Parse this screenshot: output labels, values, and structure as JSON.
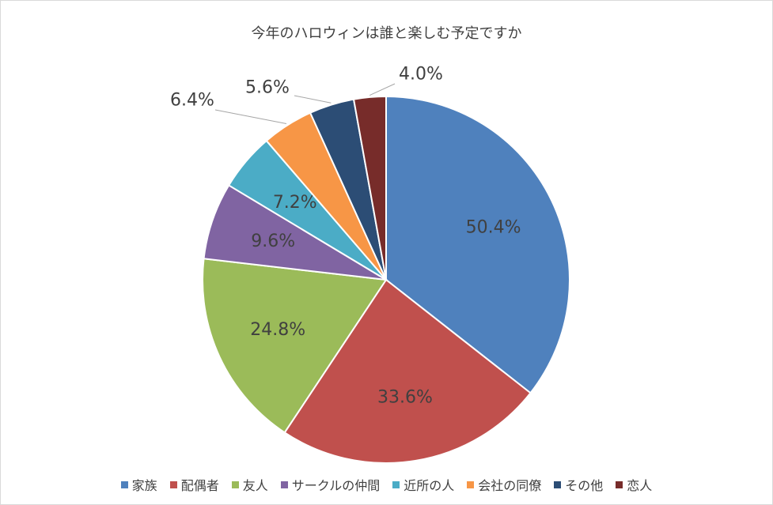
{
  "chart_data": {
    "type": "pie",
    "title": "今年のハロウィンは誰と楽しむ予定ですか",
    "categories": [
      "家族",
      "配偶者",
      "友人",
      "サークルの仲間",
      "近所の人",
      "会社の同僚",
      "その他",
      "恋人"
    ],
    "values": [
      50.4,
      33.6,
      24.8,
      9.6,
      7.2,
      6.4,
      5.6,
      4.0
    ],
    "data_labels": [
      "50.4%",
      "33.6%",
      "24.8%",
      "9.6%",
      "7.2%",
      "6.4%",
      "5.6%",
      "4.0%"
    ],
    "colors": [
      "#4f81bd",
      "#c0504d",
      "#9bbb59",
      "#8064a2",
      "#4bacc6",
      "#f79646",
      "#2c4d75",
      "#772c2a"
    ],
    "legend_position": "bottom",
    "start_angle": "12 o'clock, clockwise"
  }
}
